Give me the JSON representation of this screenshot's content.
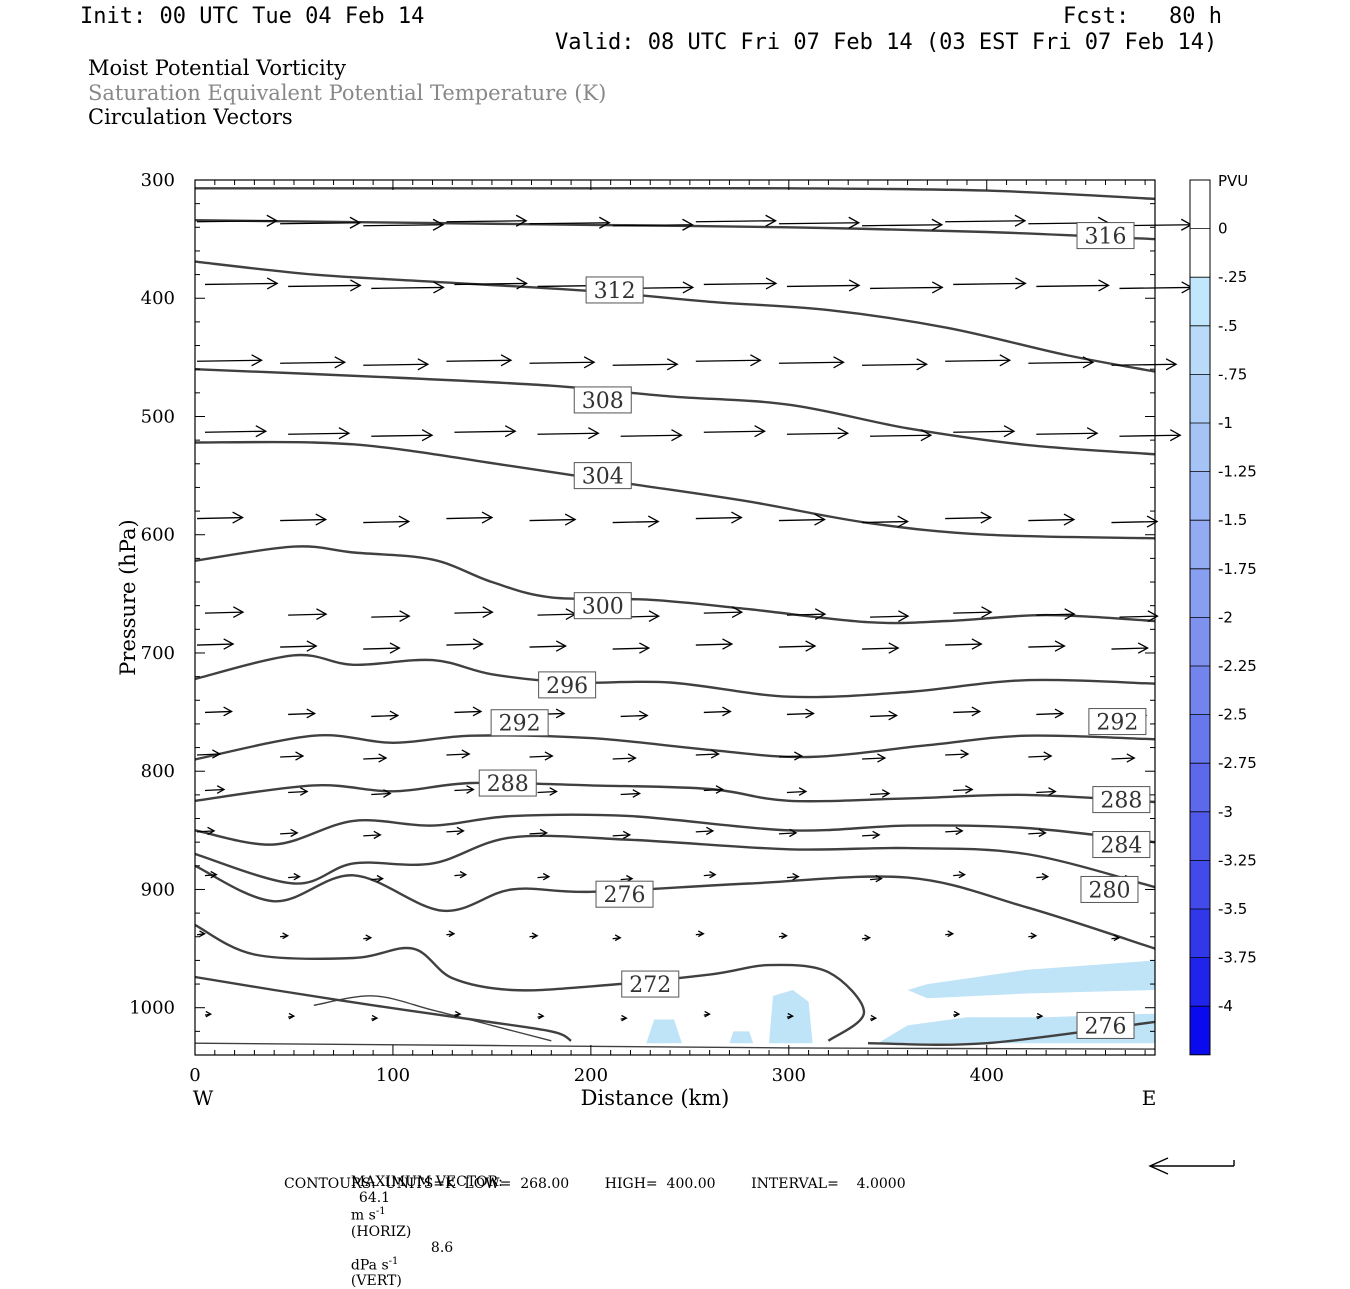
{
  "header": {
    "init": "Init: 00 UTC Tue 04 Feb 14",
    "fcst": "Fcst:   80 h",
    "valid": "Valid: 08 UTC Fri 07 Feb 14 (03 EST Fri 07 Feb 14)"
  },
  "titles": {
    "line1": "Moist Potential Vorticity",
    "line2": "Saturation Equivalent Potential Temperature (K)",
    "line3": "Circulation Vectors"
  },
  "colors": {
    "title2": "#888888",
    "contour": "#404040",
    "pv_fill": "#bfe3f7",
    "frame": "#000000"
  },
  "chart_data": {
    "type": "cross-section",
    "xlabel": "Distance (km)",
    "ylabel": "Pressure (hPa)",
    "xlim": [
      0,
      485
    ],
    "ylim": [
      300,
      1040
    ],
    "x_ticks": [
      0,
      100,
      200,
      300,
      400
    ],
    "y_ticks": [
      300,
      400,
      500,
      600,
      700,
      800,
      900,
      1000
    ],
    "side_labels": {
      "left": "W",
      "right": "E"
    },
    "contour_units": "K",
    "contours": [
      {
        "label": "",
        "pts": [
          [
            0,
            307
          ],
          [
            100,
            307
          ],
          [
            200,
            307
          ],
          [
            300,
            307
          ],
          [
            400,
            309
          ],
          [
            485,
            316
          ]
        ]
      },
      {
        "label": "316",
        "label_at": [
          460,
          347
        ],
        "pts": [
          [
            0,
            334
          ],
          [
            100,
            336
          ],
          [
            200,
            338
          ],
          [
            300,
            340
          ],
          [
            400,
            344
          ],
          [
            485,
            350
          ]
        ]
      },
      {
        "label": "312",
        "label_at": [
          212,
          393
        ],
        "pts": [
          [
            0,
            369
          ],
          [
            60,
            380
          ],
          [
            120,
            386
          ],
          [
            200,
            394
          ],
          [
            260,
            403
          ],
          [
            320,
            410
          ],
          [
            380,
            425
          ],
          [
            440,
            448
          ],
          [
            485,
            462
          ]
        ]
      },
      {
        "label": "308",
        "label_at": [
          206,
          486
        ],
        "pts": [
          [
            0,
            460
          ],
          [
            100,
            467
          ],
          [
            180,
            474
          ],
          [
            240,
            483
          ],
          [
            300,
            490
          ],
          [
            360,
            510
          ],
          [
            420,
            524
          ],
          [
            485,
            532
          ]
        ]
      },
      {
        "label": "304",
        "label_at": [
          206,
          550
        ],
        "pts": [
          [
            0,
            522
          ],
          [
            60,
            522
          ],
          [
            100,
            527
          ],
          [
            160,
            542
          ],
          [
            220,
            557
          ],
          [
            280,
            572
          ],
          [
            340,
            590
          ],
          [
            400,
            600
          ],
          [
            485,
            603
          ]
        ]
      },
      {
        "label": "300",
        "label_at": [
          206,
          660
        ],
        "pts": [
          [
            0,
            622
          ],
          [
            50,
            610
          ],
          [
            80,
            615
          ],
          [
            120,
            621
          ],
          [
            150,
            640
          ],
          [
            180,
            653
          ],
          [
            230,
            655
          ],
          [
            280,
            663
          ],
          [
            340,
            674
          ],
          [
            380,
            673
          ],
          [
            430,
            668
          ],
          [
            485,
            673
          ]
        ]
      },
      {
        "label": "296",
        "label_at": [
          188,
          727
        ],
        "pts": [
          [
            0,
            722
          ],
          [
            50,
            702
          ],
          [
            80,
            710
          ],
          [
            120,
            706
          ],
          [
            150,
            718
          ],
          [
            190,
            725
          ],
          [
            240,
            725
          ],
          [
            300,
            737
          ],
          [
            360,
            733
          ],
          [
            420,
            723
          ],
          [
            485,
            726
          ]
        ]
      },
      {
        "label": "292",
        "label_at": [
          164,
          759
        ],
        "pts": [
          [
            0,
            790
          ],
          [
            60,
            770
          ],
          [
            100,
            776
          ],
          [
            140,
            770
          ],
          [
            200,
            772
          ],
          [
            260,
            782
          ],
          [
            310,
            788
          ],
          [
            370,
            778
          ],
          [
            420,
            770
          ],
          [
            485,
            773
          ]
        ]
      },
      {
        "label": "",
        "label_at": [
          466,
          758
        ],
        "pts": []
      },
      {
        "label": "288",
        "label_at": [
          158,
          810
        ],
        "pts": [
          [
            0,
            825
          ],
          [
            60,
            812
          ],
          [
            100,
            817
          ],
          [
            140,
            810
          ],
          [
            200,
            812
          ],
          [
            260,
            815
          ],
          [
            300,
            825
          ],
          [
            360,
            823
          ],
          [
            420,
            820
          ],
          [
            485,
            826
          ]
        ]
      },
      {
        "label": "",
        "label_at": [
          468,
          824
        ],
        "pts": []
      },
      {
        "label": "284",
        "label_at": [
          468,
          862
        ],
        "pts": [
          [
            0,
            850
          ],
          [
            40,
            862
          ],
          [
            80,
            842
          ],
          [
            120,
            846
          ],
          [
            160,
            838
          ],
          [
            220,
            838
          ],
          [
            300,
            850
          ],
          [
            360,
            846
          ],
          [
            420,
            848
          ],
          [
            485,
            860
          ]
        ]
      },
      {
        "label": "280",
        "label_at": [
          462,
          900
        ],
        "pts": [
          [
            0,
            870
          ],
          [
            50,
            895
          ],
          [
            80,
            878
          ],
          [
            120,
            878
          ],
          [
            160,
            856
          ],
          [
            220,
            858
          ],
          [
            300,
            866
          ],
          [
            360,
            865
          ],
          [
            420,
            870
          ],
          [
            485,
            898
          ]
        ]
      },
      {
        "label": "276",
        "label_at": [
          217,
          904
        ],
        "pts": [
          [
            0,
            880
          ],
          [
            40,
            910
          ],
          [
            80,
            888
          ],
          [
            125,
            918
          ],
          [
            160,
            900
          ],
          [
            200,
            902
          ],
          [
            280,
            895
          ],
          [
            360,
            890
          ],
          [
            420,
            915
          ],
          [
            485,
            950
          ]
        ]
      },
      {
        "label": "272",
        "label_at": [
          230,
          980
        ],
        "pts": [
          [
            0,
            930
          ],
          [
            30,
            955
          ],
          [
            80,
            958
          ],
          [
            110,
            950
          ],
          [
            130,
            975
          ],
          [
            160,
            985
          ],
          [
            200,
            982
          ],
          [
            260,
            972
          ],
          [
            290,
            964
          ],
          [
            320,
            970
          ],
          [
            338,
            1004
          ],
          [
            320,
            1028
          ]
        ]
      },
      {
        "label": "",
        "pts": [
          [
            0,
            974
          ],
          [
            40,
            985
          ],
          [
            90,
            998
          ],
          [
            140,
            1010
          ],
          [
            180,
            1020
          ],
          [
            190,
            1028
          ]
        ]
      },
      {
        "label": "",
        "pts": [
          [
            60,
            998
          ],
          [
            90,
            990
          ],
          [
            120,
            1002
          ],
          [
            150,
            1015
          ],
          [
            180,
            1028
          ]
        ]
      },
      {
        "label": "",
        "pts": [
          [
            0,
            1030
          ],
          [
            150,
            1032
          ],
          [
            300,
            1034
          ],
          [
            485,
            1035
          ]
        ]
      },
      {
        "label": "276",
        "label_at": [
          460,
          1015
        ],
        "pts": [
          [
            340,
            1030
          ],
          [
            400,
            1030
          ],
          [
            485,
            1012
          ]
        ]
      }
    ],
    "vector_rows": [
      {
        "p": 337,
        "len": 42
      },
      {
        "p": 390,
        "len": 38
      },
      {
        "p": 455,
        "len": 34
      },
      {
        "p": 515,
        "len": 32
      },
      {
        "p": 588,
        "len": 24
      },
      {
        "p": 668,
        "len": 20
      },
      {
        "p": 695,
        "len": 19
      },
      {
        "p": 752,
        "len": 14
      },
      {
        "p": 788,
        "len": 12
      },
      {
        "p": 818,
        "len": 10
      },
      {
        "p": 853,
        "len": 9
      },
      {
        "p": 890,
        "len": 6
      },
      {
        "p": 940,
        "len": 4
      },
      {
        "p": 1008,
        "len": 3
      }
    ],
    "vector_x": [
      0,
      42,
      84,
      126,
      168,
      210,
      252,
      294,
      336,
      378,
      420,
      462
    ],
    "pv_regions": [
      {
        "pts": [
          [
            370,
            980
          ],
          [
            420,
            968
          ],
          [
            485,
            960
          ],
          [
            485,
            985
          ],
          [
            420,
            988
          ],
          [
            370,
            992
          ],
          [
            360,
            985
          ]
        ]
      },
      {
        "pts": [
          [
            345,
            1030
          ],
          [
            360,
            1015
          ],
          [
            390,
            1008
          ],
          [
            430,
            1008
          ],
          [
            485,
            1005
          ],
          [
            485,
            1030
          ]
        ]
      },
      {
        "pts": [
          [
            228,
            1030
          ],
          [
            232,
            1010
          ],
          [
            242,
            1010
          ],
          [
            246,
            1030
          ]
        ]
      },
      {
        "pts": [
          [
            290,
            1030
          ],
          [
            292,
            990
          ],
          [
            302,
            985
          ],
          [
            310,
            995
          ],
          [
            312,
            1030
          ]
        ]
      },
      {
        "pts": [
          [
            270,
            1030
          ],
          [
            272,
            1020
          ],
          [
            280,
            1020
          ],
          [
            282,
            1030
          ]
        ]
      }
    ],
    "colorbar": {
      "title": "PVU",
      "labels": [
        "0",
        "-.25",
        "-.5",
        "-.75",
        "-1",
        "-1.25",
        "-1.5",
        "-1.75",
        "-2",
        "-2.25",
        "-2.5",
        "-2.75",
        "-3",
        "-3.25",
        "-3.5",
        "-3.75",
        "-4"
      ],
      "colors": [
        "#ffffff",
        "#ffffff",
        "#c2e6fb",
        "#b9dbf8",
        "#b0cff7",
        "#a6c3f6",
        "#9cb7f5",
        "#92abf3",
        "#889ef1",
        "#7e91ef",
        "#7384ed",
        "#6877ec",
        "#5c69ea",
        "#505aea",
        "#424ae9",
        "#3238ea",
        "#1f23ec",
        "#0a0aee"
      ]
    }
  },
  "footer": {
    "max_vector_label": "MAXIMUM VECTOR:",
    "horiz_value": "64.1",
    "horiz_unit_pre": "m s",
    "horiz_exp": "-1",
    "horiz_tag": "(HORIZ)",
    "vert_value": "8.6",
    "vert_unit_pre": "dPa s",
    "vert_exp": "-1",
    "vert_tag": "(VERT)",
    "contours_line": "CONTOURS:  UNITS=K  LOW=  268.00        HIGH=  400.00        INTERVAL=    4.0000"
  }
}
